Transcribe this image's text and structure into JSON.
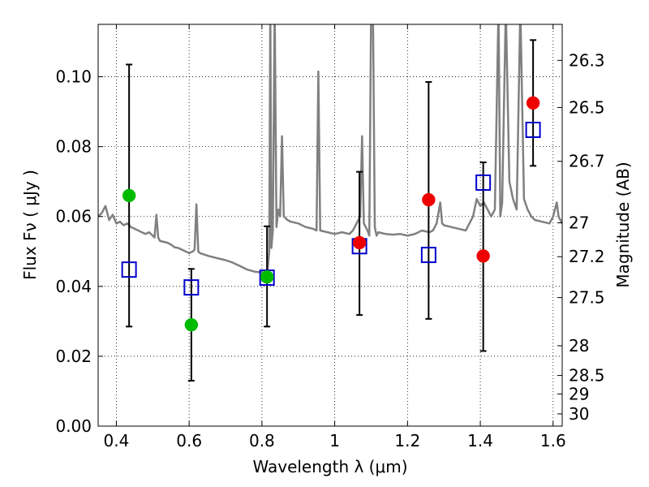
{
  "chart_data": {
    "type": "scatter",
    "xlabel": "Wavelength  λ (μm)",
    "ylabel": "Flux  Fν  ( μJy )",
    "ylabel_right": "Magnitude (AB)",
    "xlim": [
      0.35,
      1.625
    ],
    "ylim": [
      0.0,
      0.115
    ],
    "grid": true,
    "x_ticks": [
      {
        "value": 0.4,
        "label": "0.4"
      },
      {
        "value": 0.6,
        "label": "0.6"
      },
      {
        "value": 0.8,
        "label": "0.8"
      },
      {
        "value": 1.0,
        "label": "1"
      },
      {
        "value": 1.2,
        "label": "1.2"
      },
      {
        "value": 1.4,
        "label": "1.4"
      },
      {
        "value": 1.6,
        "label": "1.6"
      }
    ],
    "y_ticks": [
      {
        "value": 0.0,
        "label": "0.00"
      },
      {
        "value": 0.02,
        "label": "0.02"
      },
      {
        "value": 0.04,
        "label": "0.04"
      },
      {
        "value": 0.06,
        "label": "0.06"
      },
      {
        "value": 0.08,
        "label": "0.08"
      },
      {
        "value": 0.1,
        "label": "0.10"
      }
    ],
    "right_ticks": [
      {
        "label": "26.3",
        "flux": 0.1047
      },
      {
        "label": "26.5",
        "flux": 0.0912
      },
      {
        "label": "26.7",
        "flux": 0.0758
      },
      {
        "label": "27",
        "flux": 0.0582
      },
      {
        "label": "27.2",
        "flux": 0.0485
      },
      {
        "label": "27.5",
        "flux": 0.0368
      },
      {
        "label": "28",
        "flux": 0.023
      },
      {
        "label": "28.5",
        "flux": 0.0145
      },
      {
        "label": "29",
        "flux": 0.0092
      },
      {
        "label": "30",
        "flux": 0.0035
      }
    ],
    "errorbars": [
      {
        "x": 0.435,
        "low": 0.0285,
        "high": 0.1035
      },
      {
        "x": 0.606,
        "low": 0.013,
        "high": 0.045
      },
      {
        "x": 0.814,
        "low": 0.0285,
        "high": 0.0572
      },
      {
        "x": 1.068,
        "low": 0.0318,
        "high": 0.0728
      },
      {
        "x": 1.258,
        "low": 0.0307,
        "high": 0.0985
      },
      {
        "x": 1.408,
        "low": 0.0215,
        "high": 0.0755
      },
      {
        "x": 1.545,
        "low": 0.0745,
        "high": 0.1105
      }
    ],
    "series": [
      {
        "marker": "square-open",
        "color": "#0000cc",
        "points": [
          {
            "x": 0.435,
            "y": 0.0448
          },
          {
            "x": 0.606,
            "y": 0.0397
          },
          {
            "x": 0.814,
            "y": 0.0425
          },
          {
            "x": 1.068,
            "y": 0.0515
          },
          {
            "x": 1.258,
            "y": 0.049
          },
          {
            "x": 1.408,
            "y": 0.0697
          },
          {
            "x": 1.545,
            "y": 0.0848
          }
        ]
      },
      {
        "marker": "circle",
        "color": "#00bb00",
        "points": [
          {
            "x": 0.435,
            "y": 0.066
          },
          {
            "x": 0.606,
            "y": 0.029
          },
          {
            "x": 0.814,
            "y": 0.0427
          }
        ]
      },
      {
        "marker": "circle",
        "color": "#ee0000",
        "points": [
          {
            "x": 1.068,
            "y": 0.0525
          },
          {
            "x": 1.258,
            "y": 0.0648
          },
          {
            "x": 1.408,
            "y": 0.0487
          },
          {
            "x": 1.545,
            "y": 0.0925
          }
        ]
      }
    ],
    "spectrum": {
      "color": "#808080",
      "points": [
        [
          0.35,
          0.06
        ],
        [
          0.36,
          0.061
        ],
        [
          0.37,
          0.063
        ],
        [
          0.38,
          0.059
        ],
        [
          0.39,
          0.0605
        ],
        [
          0.4,
          0.058
        ],
        [
          0.41,
          0.0585
        ],
        [
          0.42,
          0.0575
        ],
        [
          0.43,
          0.058
        ],
        [
          0.44,
          0.057
        ],
        [
          0.45,
          0.0565
        ],
        [
          0.46,
          0.056
        ],
        [
          0.47,
          0.0555
        ],
        [
          0.48,
          0.055
        ],
        [
          0.49,
          0.0555
        ],
        [
          0.5,
          0.0545
        ],
        [
          0.505,
          0.054
        ],
        [
          0.51,
          0.0605
        ],
        [
          0.515,
          0.054
        ],
        [
          0.52,
          0.053
        ],
        [
          0.54,
          0.0525
        ],
        [
          0.55,
          0.052
        ],
        [
          0.56,
          0.0512
        ],
        [
          0.57,
          0.051
        ],
        [
          0.58,
          0.0505
        ],
        [
          0.59,
          0.05
        ],
        [
          0.6,
          0.0495
        ],
        [
          0.61,
          0.05
        ],
        [
          0.615,
          0.0505
        ],
        [
          0.62,
          0.0635
        ],
        [
          0.625,
          0.05
        ],
        [
          0.63,
          0.0495
        ],
        [
          0.65,
          0.0488
        ],
        [
          0.68,
          0.048
        ],
        [
          0.7,
          0.0475
        ],
        [
          0.72,
          0.0468
        ],
        [
          0.74,
          0.0458
        ],
        [
          0.76,
          0.0448
        ],
        [
          0.78,
          0.0442
        ],
        [
          0.8,
          0.044
        ],
        [
          0.81,
          0.0438
        ],
        [
          0.815,
          0.044
        ],
        [
          0.82,
          0.05
        ],
        [
          0.823,
          0.12
        ],
        [
          0.826,
          0.051
        ],
        [
          0.83,
          0.056
        ],
        [
          0.835,
          0.12
        ],
        [
          0.84,
          0.057
        ],
        [
          0.845,
          0.062
        ],
        [
          0.85,
          0.06
        ],
        [
          0.855,
          0.083
        ],
        [
          0.86,
          0.06
        ],
        [
          0.87,
          0.059
        ],
        [
          0.88,
          0.0585
        ],
        [
          0.9,
          0.058
        ],
        [
          0.92,
          0.057
        ],
        [
          0.94,
          0.0565
        ],
        [
          0.95,
          0.056
        ],
        [
          0.955,
          0.1015
        ],
        [
          0.96,
          0.056
        ],
        [
          0.98,
          0.0555
        ],
        [
          1.0,
          0.055
        ],
        [
          1.02,
          0.0555
        ],
        [
          1.04,
          0.055
        ],
        [
          1.05,
          0.056
        ],
        [
          1.07,
          0.06
        ],
        [
          1.075,
          0.083
        ],
        [
          1.08,
          0.058
        ],
        [
          1.09,
          0.056
        ],
        [
          1.095,
          0.0545
        ],
        [
          1.1,
          0.12
        ],
        [
          1.105,
          0.12
        ],
        [
          1.11,
          0.057
        ],
        [
          1.115,
          0.0545
        ],
        [
          1.12,
          0.0555
        ],
        [
          1.14,
          0.055
        ],
        [
          1.16,
          0.0548
        ],
        [
          1.18,
          0.055
        ],
        [
          1.2,
          0.0545
        ],
        [
          1.22,
          0.055
        ],
        [
          1.24,
          0.056
        ],
        [
          1.26,
          0.0555
        ],
        [
          1.27,
          0.056
        ],
        [
          1.28,
          0.058
        ],
        [
          1.29,
          0.064
        ],
        [
          1.295,
          0.058
        ],
        [
          1.3,
          0.0575
        ],
        [
          1.32,
          0.057
        ],
        [
          1.34,
          0.0565
        ],
        [
          1.36,
          0.056
        ],
        [
          1.37,
          0.058
        ],
        [
          1.38,
          0.06
        ],
        [
          1.39,
          0.065
        ],
        [
          1.4,
          0.063
        ],
        [
          1.41,
          0.064
        ],
        [
          1.42,
          0.062
        ],
        [
          1.43,
          0.06
        ],
        [
          1.44,
          0.062
        ],
        [
          1.45,
          0.12
        ],
        [
          1.455,
          0.06
        ],
        [
          1.46,
          0.064
        ],
        [
          1.47,
          0.12
        ],
        [
          1.48,
          0.07
        ],
        [
          1.49,
          0.065
        ],
        [
          1.5,
          0.062
        ],
        [
          1.51,
          0.12
        ],
        [
          1.52,
          0.065
        ],
        [
          1.53,
          0.062
        ],
        [
          1.54,
          0.06
        ],
        [
          1.55,
          0.059
        ],
        [
          1.57,
          0.0585
        ],
        [
          1.59,
          0.058
        ],
        [
          1.6,
          0.06
        ],
        [
          1.61,
          0.064
        ],
        [
          1.615,
          0.06
        ],
        [
          1.625,
          0.058
        ]
      ]
    }
  }
}
